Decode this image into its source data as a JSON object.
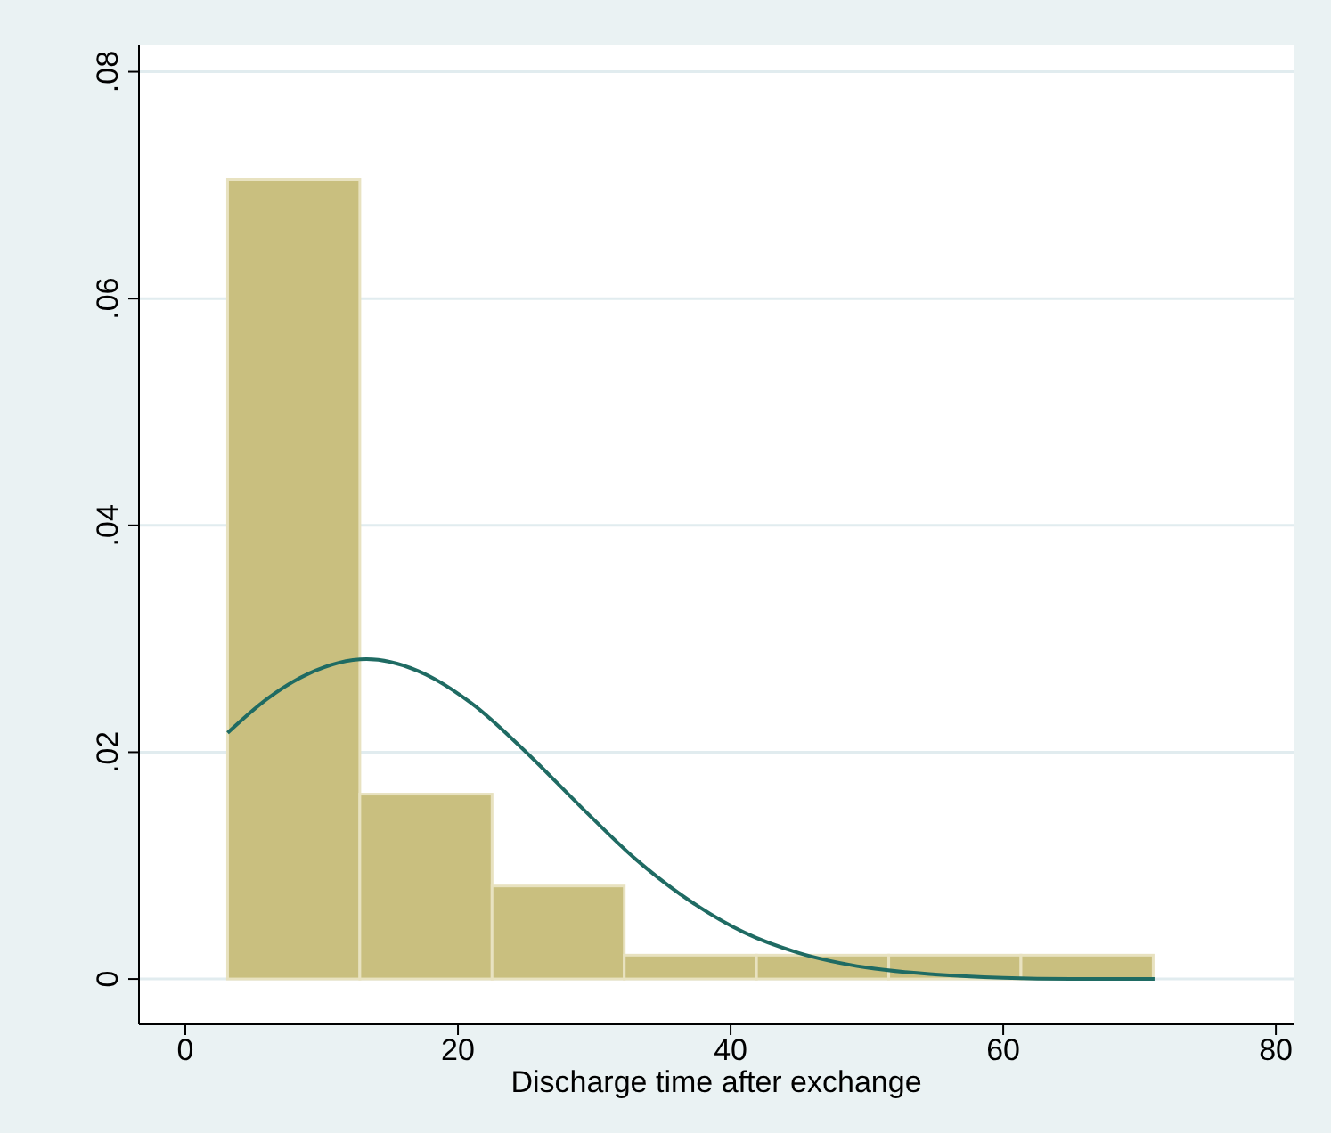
{
  "chart_data": {
    "type": "histogram",
    "xlabel": "Discharge time after exchange",
    "xlim": [
      -3.4,
      81.3
    ],
    "xticks": [
      0,
      20,
      40,
      60,
      80
    ],
    "ylim": [
      -0.004,
      0.0824
    ],
    "yticks": [
      {
        "value": 0,
        "label": "0"
      },
      {
        "value": 0.02,
        "label": ".02"
      },
      {
        "value": 0.04,
        "label": ".04"
      },
      {
        "value": 0.06,
        "label": ".06"
      },
      {
        "value": 0.08,
        "label": ".08"
      }
    ],
    "grid": "y",
    "series": [
      {
        "color": "#c9bf7f",
        "bins": [
          3.1,
          12.8,
          22.5,
          32.2,
          41.9,
          51.6,
          61.3,
          71.0
        ],
        "values": [
          0.0705,
          0.0163,
          0.0082,
          0.0021,
          0.0021,
          0.0021,
          0.0021
        ]
      },
      {
        "type": "line",
        "color": "#1f6b63",
        "x": [
          3.1,
          6,
          9,
          13.3,
          17,
          21,
          25,
          29,
          33,
          37,
          41,
          45,
          50,
          55,
          60,
          65,
          71.1
        ],
        "values": [
          0.0217,
          0.0247,
          0.0269,
          0.0282,
          0.0272,
          0.0243,
          0.02,
          0.0152,
          0.0106,
          0.0069,
          0.0041,
          0.0023,
          0.001,
          0.0004,
          0.0001,
          0,
          0
        ]
      }
    ]
  }
}
